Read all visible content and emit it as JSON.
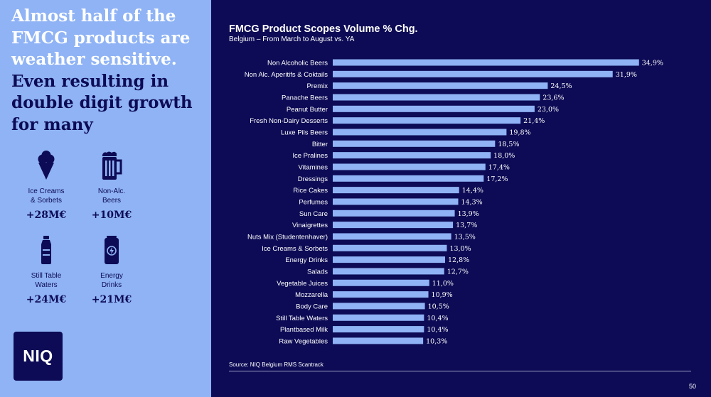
{
  "headline": {
    "lines_light": [
      "Almost half of the",
      "FMCG products are",
      "weather sensitive."
    ],
    "lines_dark": [
      "Even resulting in",
      "double digit growth",
      "for many"
    ]
  },
  "categories": [
    {
      "icon": "ice-cream-icon",
      "label_lines": [
        "Ice Creams",
        "& Sorbets"
      ],
      "value": "+28M€"
    },
    {
      "icon": "beer-mug-icon",
      "label_lines": [
        "Non-Alc.",
        "Beers"
      ],
      "value": "+10M€"
    },
    {
      "icon": "water-bottle-icon",
      "label_lines": [
        "Still Table",
        "Waters"
      ],
      "value": "+24M€"
    },
    {
      "icon": "energy-drink-can-icon",
      "label_lines": [
        "Energy",
        "Drinks"
      ],
      "value": "+21M€"
    }
  ],
  "logo": {
    "text": "NIQ"
  },
  "chart_data": {
    "type": "bar",
    "orientation": "horizontal",
    "title": "FMCG Product Scopes Volume % Chg.",
    "subtitle": "Belgium – From March to August vs. YA",
    "categories": [
      "Non Alcoholic Beers",
      "Non Alc. Aperitifs & Coktails",
      "Premix",
      "Panache Beers",
      "Peanut Butter",
      "Fresh Non-Dairy Desserts",
      "Luxe Pils Beers",
      "Bitter",
      "Ice Pralines",
      "Vitamines",
      "Dressings",
      "Rice Cakes",
      "Perfumes",
      "Sun Care",
      "Vinaigrettes",
      "Nuts Mix (Studentenhaver)",
      "Ice Creams & Sorbets",
      "Energy Drinks",
      "Salads",
      "Vegetable Juices",
      "Mozzarella",
      "Body Care",
      "Still Table Waters",
      "Plantbased Milk",
      "Raw Vegetables"
    ],
    "values": [
      34.9,
      31.9,
      24.5,
      23.6,
      23.0,
      21.4,
      19.8,
      18.5,
      18.0,
      17.4,
      17.2,
      14.4,
      14.3,
      13.9,
      13.7,
      13.5,
      13.0,
      12.8,
      12.7,
      11.0,
      10.9,
      10.5,
      10.4,
      10.4,
      10.3
    ],
    "labels": [
      "34,9%",
      "31,9%",
      "24,5%",
      "23,6%",
      "23,0%",
      "21,4%",
      "19,8%",
      "18,5%",
      "18,0%",
      "17,4%",
      "17,2%",
      "14,4%",
      "14,3%",
      "13,9%",
      "13,7%",
      "13,5%",
      "13,0%",
      "12,8%",
      "12,7%",
      "11,0%",
      "10,9%",
      "10,5%",
      "10,4%",
      "10,4%",
      "10,3%"
    ],
    "xlim": [
      0,
      35
    ],
    "bar_color": "#8fb3f5",
    "grid": false
  },
  "footer": {
    "source": "Source: NIQ Belgium RMS Scantrack",
    "page_number": "50"
  }
}
